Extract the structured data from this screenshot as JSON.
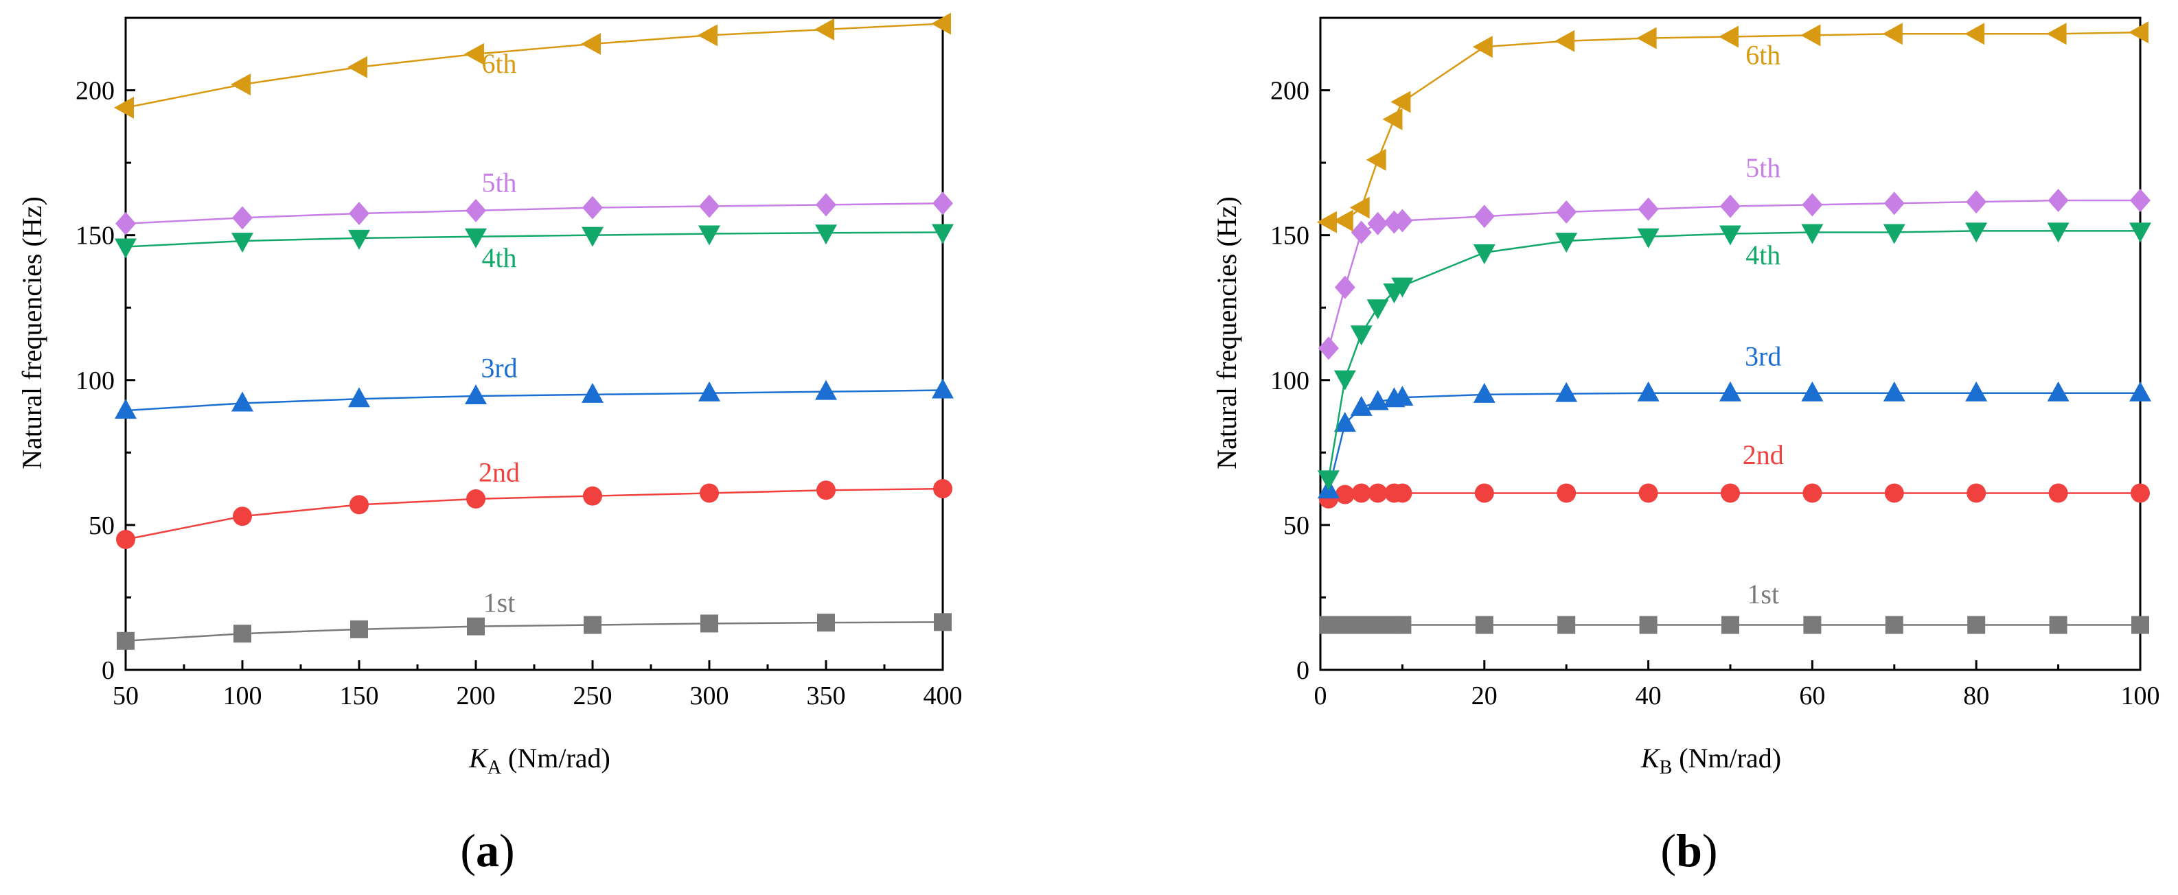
{
  "chart_data": [
    {
      "type": "line",
      "panel_label": "(a)",
      "panel_letter": "a",
      "xlabel_var": "K",
      "xlabel_sub": "A",
      "xlabel_unit": " (Nm/rad)",
      "ylabel": "Natural frequencies (Hz)",
      "xlim": [
        50,
        400
      ],
      "ylim": [
        0,
        225
      ],
      "xticks": [
        50,
        100,
        150,
        200,
        250,
        300,
        350,
        400
      ],
      "yticks": [
        0,
        50,
        100,
        150,
        200
      ],
      "x": [
        50,
        100,
        150,
        200,
        250,
        300,
        350,
        400
      ],
      "series": [
        {
          "name": "1st",
          "color": "#7a7a7a",
          "marker": "square",
          "values": [
            10,
            12.5,
            14,
            15,
            15.5,
            16,
            16.3,
            16.5
          ],
          "label_at": [
            210,
            20
          ]
        },
        {
          "name": "2nd",
          "color": "#f0413f",
          "marker": "circle",
          "values": [
            45,
            53,
            57,
            59,
            60,
            61,
            62,
            62.5
          ],
          "label_at": [
            210,
            65
          ]
        },
        {
          "name": "3rd",
          "color": "#1c6fd2",
          "marker": "triangle-up",
          "values": [
            89.5,
            92,
            93.5,
            94.5,
            95,
            95.5,
            96,
            96.5
          ],
          "label_at": [
            210,
            101
          ]
        },
        {
          "name": "4th",
          "color": "#12a86a",
          "marker": "triangle-down",
          "values": [
            146,
            148,
            149,
            149.5,
            150,
            150.5,
            150.8,
            151
          ],
          "label_at": [
            210,
            139
          ]
        },
        {
          "name": "5th",
          "color": "#c77fe6",
          "marker": "diamond",
          "values": [
            154,
            156,
            157.5,
            158.5,
            159.5,
            160,
            160.5,
            161
          ],
          "label_at": [
            210,
            165
          ]
        },
        {
          "name": "6th",
          "color": "#d99a13",
          "marker": "triangle-left",
          "values": [
            194,
            202,
            208,
            212.5,
            216,
            219,
            221,
            223
          ],
          "label_at": [
            210,
            206
          ]
        }
      ]
    },
    {
      "type": "line",
      "panel_label": "(b)",
      "panel_letter": "b",
      "xlabel_var": "K",
      "xlabel_sub": "B",
      "xlabel_unit": " (Nm/rad)",
      "ylabel": "Natural frequencies (Hz)",
      "xlim": [
        0,
        100
      ],
      "ylim": [
        0,
        225
      ],
      "xticks": [
        0,
        20,
        40,
        60,
        80,
        100
      ],
      "yticks": [
        0,
        50,
        100,
        150,
        200
      ],
      "x": [
        1,
        3,
        5,
        7,
        9,
        10,
        20,
        30,
        40,
        50,
        60,
        70,
        80,
        90,
        100
      ],
      "series": [
        {
          "name": "1st",
          "color": "#7a7a7a",
          "marker": "square",
          "values": [
            15.5,
            15.5,
            15.5,
            15.5,
            15.5,
            15.5,
            15.5,
            15.5,
            15.5,
            15.5,
            15.5,
            15.5,
            15.5,
            15.5,
            15.5
          ],
          "label_at": [
            54,
            23
          ]
        },
        {
          "name": "2nd",
          "color": "#f0413f",
          "marker": "circle",
          "values": [
            59,
            60.5,
            61,
            61,
            61,
            61,
            61,
            61,
            61,
            61,
            61,
            61,
            61,
            61,
            61
          ],
          "label_at": [
            54,
            71
          ]
        },
        {
          "name": "3rd",
          "color": "#1c6fd2",
          "marker": "triangle-up",
          "values": [
            62,
            85,
            90.5,
            92.5,
            93.5,
            94,
            95,
            95.3,
            95.5,
            95.5,
            95.5,
            95.5,
            95.5,
            95.5,
            95.5
          ],
          "label_at": [
            54,
            105
          ]
        },
        {
          "name": "4th",
          "color": "#12a86a",
          "marker": "triangle-down",
          "values": [
            66,
            100.5,
            116,
            125,
            130.5,
            132.5,
            144,
            148,
            149.5,
            150.5,
            151,
            151,
            151.5,
            151.5,
            151.5
          ],
          "label_at": [
            54,
            140
          ]
        },
        {
          "name": "5th",
          "color": "#c77fe6",
          "marker": "diamond",
          "values": [
            111,
            132,
            151,
            154,
            154.5,
            155,
            156.5,
            158,
            159,
            160,
            160.5,
            161,
            161.5,
            162,
            162
          ],
          "label_at": [
            54,
            170
          ]
        },
        {
          "name": "6th",
          "color": "#d99a13",
          "marker": "triangle-left",
          "values": [
            154.5,
            155,
            159.5,
            176,
            190,
            196,
            215,
            217,
            218,
            218.5,
            219,
            219.5,
            219.5,
            219.5,
            220
          ],
          "label_at": [
            54,
            209
          ]
        }
      ]
    }
  ]
}
